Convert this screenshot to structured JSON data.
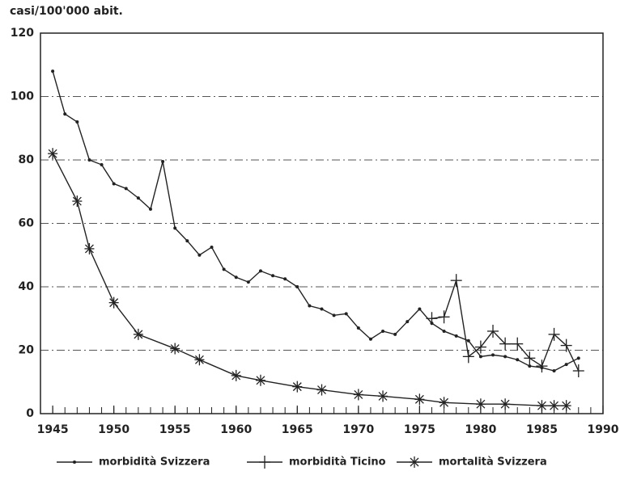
{
  "chart_data": {
    "type": "line",
    "y_label": "casi/100'000 abit.",
    "xlim": [
      1944,
      1990
    ],
    "ylim": [
      0,
      120
    ],
    "xticks": [
      1945,
      1950,
      1955,
      1960,
      1965,
      1970,
      1975,
      1980,
      1985,
      1990
    ],
    "xminorticks": [
      1945,
      1946,
      1947,
      1948,
      1949,
      1950,
      1951,
      1952,
      1953,
      1954,
      1955,
      1956,
      1957,
      1958,
      1959,
      1960,
      1961,
      1962,
      1963,
      1964,
      1965,
      1966,
      1967,
      1968,
      1969,
      1970,
      1971,
      1972,
      1973,
      1974,
      1975,
      1976,
      1977,
      1978,
      1979,
      1980,
      1981,
      1982,
      1983,
      1984,
      1985,
      1986,
      1987,
      1988,
      1989
    ],
    "yticks": [
      0,
      20,
      40,
      60,
      80,
      100,
      120
    ],
    "grid": true,
    "legend": "bottom",
    "series": [
      {
        "name": "morbidità Svizzera",
        "color": "#222",
        "marker": "dot",
        "x": [
          1945,
          1946,
          1947,
          1948,
          1949,
          1950,
          1951,
          1952,
          1953,
          1954,
          1955,
          1956,
          1957,
          1958,
          1959,
          1960,
          1961,
          1962,
          1963,
          1964,
          1965,
          1966,
          1967,
          1968,
          1969,
          1970,
          1971,
          1972,
          1973,
          1974,
          1975,
          1976,
          1977,
          1978,
          1979,
          1980,
          1981,
          1982,
          1983,
          1984,
          1985,
          1986,
          1987,
          1988
        ],
        "values": [
          108,
          94.5,
          92,
          80,
          78.5,
          72.5,
          71,
          68,
          64.5,
          79.5,
          58.5,
          54.5,
          50,
          52.5,
          45.5,
          43,
          41.5,
          45,
          43.5,
          42.5,
          40,
          34,
          33,
          31,
          31.5,
          27,
          23.5,
          26,
          25,
          29,
          33,
          28.5,
          26,
          24.5,
          23,
          18,
          18.5,
          18,
          17,
          15,
          14.5,
          13.5,
          15.5,
          17.5
        ]
      },
      {
        "name": "morbidità Ticino",
        "color": "#222",
        "marker": "plus",
        "x": [
          1976,
          1977,
          1978,
          1979,
          1980,
          1981,
          1982,
          1983,
          1984,
          1985,
          1986,
          1987,
          1988
        ],
        "values": [
          30,
          30.5,
          42,
          18,
          21,
          26,
          22,
          22,
          17.5,
          15,
          25,
          21.5,
          13.5
        ]
      },
      {
        "name": "mortalità Svizzera",
        "color": "#222",
        "marker": "star",
        "x": [
          1945,
          1947,
          1948,
          1950,
          1952,
          1955,
          1957,
          1960,
          1962,
          1965,
          1967,
          1970,
          1972,
          1975,
          1977,
          1980,
          1982,
          1985,
          1986,
          1987
        ],
        "values": [
          82,
          67,
          52,
          35,
          25,
          20.5,
          17,
          12,
          10.5,
          8.5,
          7.5,
          6,
          5.5,
          4.5,
          3.5,
          3,
          3,
          2.5,
          2.5,
          2.5
        ]
      }
    ]
  }
}
